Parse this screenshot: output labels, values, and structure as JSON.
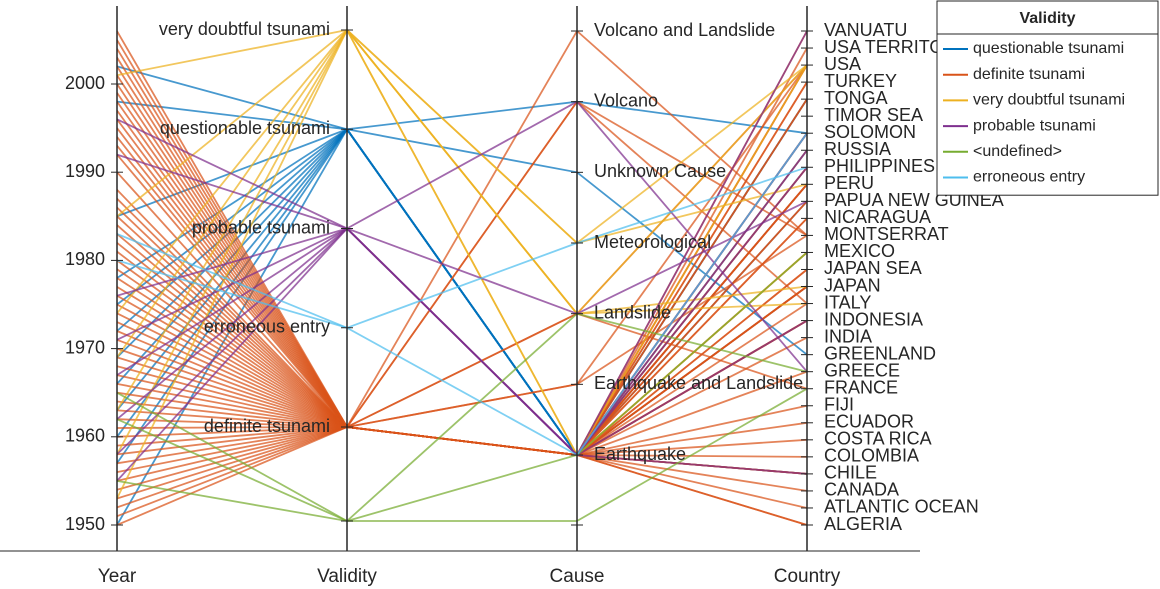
{
  "chart_data": {
    "type": "parallel-coordinates",
    "axes": [
      "Year",
      "Validity",
      "Cause",
      "Country"
    ],
    "year_ticks": [
      1950,
      1960,
      1970,
      1980,
      1990,
      2000
    ],
    "year_range": [
      1949.5,
      2009
    ],
    "validity_categories": [
      "definite tsunami",
      "erroneous entry",
      "probable tsunami",
      "questionable tsunami",
      "very doubtful tsunami"
    ],
    "cause_categories": [
      "Earthquake",
      "Earthquake and Landslide",
      "Landslide",
      "Meteorological",
      "Unknown Cause",
      "Volcano",
      "Volcano and Landslide"
    ],
    "country_categories": [
      "ALGERIA",
      "ATLANTIC OCEAN",
      "CANADA",
      "CHILE",
      "COLOMBIA",
      "COSTA RICA",
      "ECUADOR",
      "FIJI",
      "FRANCE",
      "GREECE",
      "GREENLAND",
      "INDIA",
      "INDONESIA",
      "ITALY",
      "JAPAN",
      "JAPAN SEA",
      "MEXICO",
      "MONTSERRAT",
      "NICARAGUA",
      "PAPUA NEW GUINEA",
      "PERU",
      "PHILIPPINES",
      "RUSSIA",
      "SOLOMON",
      "TIMOR SEA",
      "TONGA",
      "TURKEY",
      "USA",
      "USA TERRITORY",
      "VANUATU"
    ],
    "legend": {
      "title": "Validity",
      "position": "top-right",
      "entries": [
        {
          "name": "questionable tsunami",
          "color": "#0072BD"
        },
        {
          "name": "definite tsunami",
          "color": "#D95319"
        },
        {
          "name": "very doubtful tsunami",
          "color": "#EDB120"
        },
        {
          "name": "probable tsunami",
          "color": "#7E2F8E"
        },
        {
          "name": "<undefined>",
          "color": "#77AC30"
        },
        {
          "name": "erroneous entry",
          "color": "#4DBEEE"
        }
      ]
    },
    "series": [
      {
        "name": "questionable tsunami",
        "color": "#0072BD",
        "lines": [
          [
            1950,
            "questionable tsunami",
            "Earthquake",
            "INDONESIA"
          ],
          [
            1957,
            "questionable tsunami",
            "Earthquake",
            "JAPAN"
          ],
          [
            1960,
            "questionable tsunami",
            "Earthquake",
            "PERU"
          ],
          [
            1963,
            "questionable tsunami",
            "Earthquake",
            "CHILE"
          ],
          [
            1966,
            "questionable tsunami",
            "Earthquake",
            "PHILIPPINES"
          ],
          [
            1969,
            "questionable tsunami",
            "Earthquake",
            "SOLOMON"
          ],
          [
            1972,
            "questionable tsunami",
            "Earthquake",
            "TONGA"
          ],
          [
            1975,
            "questionable tsunami",
            "Earthquake",
            "RUSSIA"
          ],
          [
            1978,
            "questionable tsunami",
            "Earthquake",
            "PAPUA NEW GUINEA"
          ],
          [
            1985,
            "questionable tsunami",
            "Volcano",
            "SOLOMON"
          ],
          [
            1998,
            "questionable tsunami",
            "Unknown Cause",
            "GREENLAND"
          ],
          [
            2002,
            "questionable tsunami",
            "Earthquake",
            "TONGA"
          ]
        ]
      },
      {
        "name": "definite tsunami",
        "color": "#D95319",
        "lines": [
          [
            1950,
            "definite tsunami",
            "Earthquake",
            "ALGERIA"
          ],
          [
            1951,
            "definite tsunami",
            "Earthquake",
            "CHILE"
          ],
          [
            1952,
            "definite tsunami",
            "Earthquake",
            "RUSSIA"
          ],
          [
            1953,
            "definite tsunami",
            "Earthquake",
            "FIJI"
          ],
          [
            1954,
            "definite tsunami",
            "Earthquake",
            "JAPAN"
          ],
          [
            1955,
            "definite tsunami",
            "Earthquake",
            "INDONESIA"
          ],
          [
            1956,
            "definite tsunami",
            "Earthquake",
            "GREECE"
          ],
          [
            1957,
            "definite tsunami",
            "Earthquake",
            "USA"
          ],
          [
            1958,
            "definite tsunami",
            "Landslide",
            "USA"
          ],
          [
            1959,
            "definite tsunami",
            "Earthquake",
            "MEXICO"
          ],
          [
            1960,
            "definite tsunami",
            "Earthquake",
            "CHILE"
          ],
          [
            1961,
            "definite tsunami",
            "Earthquake",
            "JAPAN"
          ],
          [
            1962,
            "definite tsunami",
            "Earthquake",
            "PERU"
          ],
          [
            1963,
            "definite tsunami",
            "Earthquake",
            "INDONESIA"
          ],
          [
            1964,
            "definite tsunami",
            "Earthquake and Landslide",
            "USA"
          ],
          [
            1965,
            "definite tsunami",
            "Earthquake",
            "SOLOMON"
          ],
          [
            1966,
            "definite tsunami",
            "Earthquake",
            "PHILIPPINES"
          ],
          [
            1967,
            "definite tsunami",
            "Earthquake",
            "COLOMBIA"
          ],
          [
            1968,
            "definite tsunami",
            "Earthquake",
            "JAPAN"
          ],
          [
            1969,
            "definite tsunami",
            "Earthquake",
            "TONGA"
          ],
          [
            1970,
            "definite tsunami",
            "Earthquake",
            "ECUADOR"
          ],
          [
            1971,
            "definite tsunami",
            "Earthquake",
            "PAPUA NEW GUINEA"
          ],
          [
            1972,
            "definite tsunami",
            "Earthquake",
            "NICARAGUA"
          ],
          [
            1973,
            "definite tsunami",
            "Earthquake",
            "JAPAN SEA"
          ],
          [
            1974,
            "definite tsunami",
            "Earthquake",
            "PERU"
          ],
          [
            1975,
            "definite tsunami",
            "Earthquake",
            "INDONESIA"
          ],
          [
            1976,
            "definite tsunami",
            "Earthquake",
            "PHILIPPINES"
          ],
          [
            1977,
            "definite tsunami",
            "Earthquake",
            "INDIA"
          ],
          [
            1978,
            "definite tsunami",
            "Earthquake",
            "CANADA"
          ],
          [
            1979,
            "definite tsunami",
            "Landslide",
            "FRANCE"
          ],
          [
            1980,
            "definite tsunami",
            "Earthquake",
            "COSTA RICA"
          ],
          [
            1981,
            "definite tsunami",
            "Earthquake",
            "TURKEY"
          ],
          [
            1982,
            "definite tsunami",
            "Earthquake",
            "ITALY"
          ],
          [
            1983,
            "definite tsunami",
            "Earthquake",
            "JAPAN SEA"
          ],
          [
            1984,
            "definite tsunami",
            "Earthquake and Landslide",
            "MONTSERRAT"
          ],
          [
            1985,
            "definite tsunami",
            "Earthquake",
            "ATLANTIC OCEAN"
          ],
          [
            1986,
            "definite tsunami",
            "Earthquake",
            "VANUATU"
          ],
          [
            1987,
            "definite tsunami",
            "Earthquake",
            "USA TERRITORY"
          ],
          [
            1988,
            "definite tsunami",
            "Earthquake",
            "CHILE"
          ],
          [
            1990,
            "definite tsunami",
            "Volcano",
            "MONTSERRAT"
          ],
          [
            1992,
            "definite tsunami",
            "Earthquake",
            "NICARAGUA"
          ],
          [
            1993,
            "definite tsunami",
            "Earthquake",
            "JAPAN"
          ],
          [
            1994,
            "definite tsunami",
            "Earthquake",
            "INDONESIA"
          ],
          [
            1995,
            "definite tsunami",
            "Earthquake",
            "MEXICO"
          ],
          [
            1996,
            "definite tsunami",
            "Earthquake",
            "PERU"
          ],
          [
            1997,
            "definite tsunami",
            "Volcano and Landslide",
            "MONTSERRAT"
          ],
          [
            1998,
            "definite tsunami",
            "Earthquake",
            "PAPUA NEW GUINEA"
          ],
          [
            1999,
            "definite tsunami",
            "Earthquake",
            "TURKEY"
          ],
          [
            2000,
            "definite tsunami",
            "Earthquake",
            "SOLOMON"
          ],
          [
            2001,
            "definite tsunami",
            "Earthquake",
            "PERU"
          ],
          [
            2002,
            "definite tsunami",
            "Volcano",
            "ITALY"
          ],
          [
            2003,
            "definite tsunami",
            "Earthquake",
            "ALGERIA"
          ],
          [
            2004,
            "definite tsunami",
            "Earthquake",
            "INDONESIA"
          ],
          [
            2005,
            "definite tsunami",
            "Earthquake",
            "TONGA"
          ],
          [
            2006,
            "definite tsunami",
            "Earthquake",
            "USA"
          ]
        ]
      },
      {
        "name": "very doubtful tsunami",
        "color": "#EDB120",
        "lines": [
          [
            1953,
            "very doubtful tsunami",
            "Meteorological",
            "USA"
          ],
          [
            1958,
            "very doubtful tsunami",
            "Landslide",
            "JAPAN"
          ],
          [
            1963,
            "very doubtful tsunami",
            "Earthquake",
            "MEXICO"
          ],
          [
            1969,
            "very doubtful tsunami",
            "Landslide",
            "ITALY"
          ],
          [
            1974,
            "very doubtful tsunami",
            "Earthquake",
            "USA"
          ],
          [
            1985,
            "very doubtful tsunami",
            "Meteorological",
            "PERU"
          ],
          [
            2001,
            "very doubtful tsunami",
            "Landslide",
            "USA"
          ]
        ]
      },
      {
        "name": "probable tsunami",
        "color": "#7E2F8E",
        "lines": [
          [
            1955,
            "probable tsunami",
            "Earthquake",
            "VANUATU"
          ],
          [
            1958,
            "probable tsunami",
            "Earthquake",
            "INDONESIA"
          ],
          [
            1962,
            "probable tsunami",
            "Earthquake",
            "CHILE"
          ],
          [
            1967,
            "probable tsunami",
            "Earthquake",
            "PHILIPPINES"
          ],
          [
            1971,
            "probable tsunami",
            "Volcano",
            "GREECE"
          ],
          [
            1976,
            "probable tsunami",
            "Earthquake",
            "RUSSIA"
          ],
          [
            1992,
            "probable tsunami",
            "Earthquake",
            "SOLOMON"
          ],
          [
            1996,
            "probable tsunami",
            "Landslide",
            "PAPUA NEW GUINEA"
          ]
        ]
      },
      {
        "name": "<undefined>",
        "color": "#77AC30",
        "lines": [
          [
            1955,
            "<undefined>",
            "<undefined>",
            "FRANCE"
          ],
          [
            1962,
            "<undefined>",
            "Landslide",
            "GREECE"
          ],
          [
            1965,
            "<undefined>",
            "Earthquake",
            "MEXICO"
          ]
        ]
      },
      {
        "name": "erroneous entry",
        "color": "#4DBEEE",
        "lines": [
          [
            1983,
            "erroneous entry",
            "Meteorological",
            "PHILIPPINES"
          ],
          [
            1980,
            "erroneous entry",
            "Earthquake",
            "SOLOMON"
          ]
        ]
      }
    ]
  }
}
